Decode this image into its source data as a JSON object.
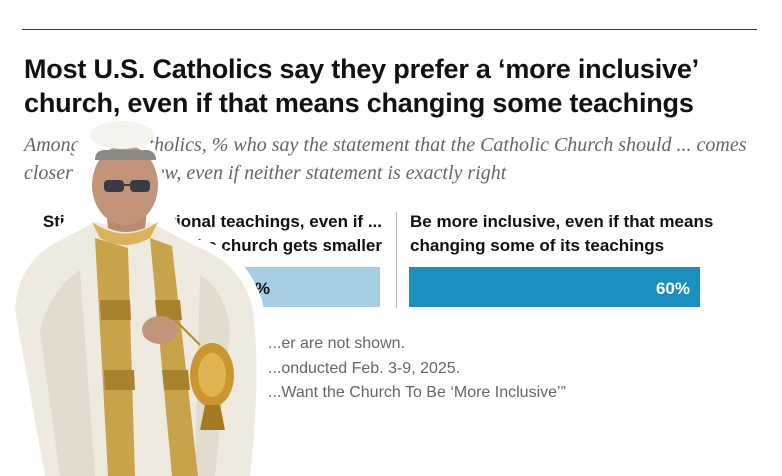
{
  "header": {
    "title": "Most U.S. Catholics say they prefer a ‘more inclusive’ church, even if that means changing some teachings",
    "subtitle": "Among U.S. Catholics, % who say the statement that the Catholic Church should ... comes closer to their view, even if neither statement is exactly right"
  },
  "columns": {
    "left_label": "Stick to its traditional teachings, even if ... the church gets smaller",
    "right_label": "Be more inclusive, even if that means changing some of its teachings"
  },
  "chart_data": {
    "type": "bar",
    "orientation": "horizontal-diverging",
    "categories": [
      "Stick to its traditional teachings",
      "Be more inclusive"
    ],
    "values": [
      37,
      60
    ],
    "value_labels": [
      "37%",
      "60%"
    ],
    "colors": [
      "#a6cfe6",
      "#1a8fc0"
    ],
    "xlim": [
      0,
      100
    ]
  },
  "notes": {
    "line1": "...er are not shown.",
    "line2": "...onducted Feb. 3-9, 2025.",
    "line3": "...Want the Church To Be ‘More Inclusive’”"
  },
  "photo": {
    "description_icon": "priest-with-censer"
  }
}
